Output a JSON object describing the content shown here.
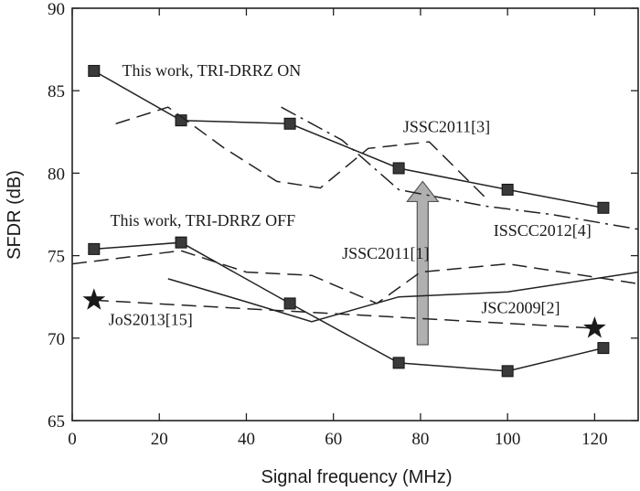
{
  "chart_data": {
    "type": "line",
    "xlabel": "Signal frequency (MHz)",
    "ylabel": "SFDR (dB)",
    "xlim": [
      0,
      130
    ],
    "ylim": [
      65,
      90
    ],
    "x_ticks": [
      0,
      20,
      40,
      60,
      80,
      100,
      120
    ],
    "y_ticks": [
      65,
      70,
      75,
      80,
      85,
      90
    ],
    "grid": false,
    "series": [
      {
        "name": "This work, TRI-DRRZ ON",
        "style": "solid",
        "marker": "square",
        "x": [
          5,
          25,
          50,
          75,
          100,
          122
        ],
        "y": [
          86.2,
          83.2,
          83.0,
          80.3,
          79.0,
          77.9
        ]
      },
      {
        "name": "This work, TRI-DRRZ OFF",
        "style": "solid",
        "marker": "square",
        "x": [
          5,
          25,
          50,
          75,
          100,
          122
        ],
        "y": [
          75.4,
          75.8,
          72.1,
          68.5,
          68.0,
          69.4
        ]
      },
      {
        "name": "JSSC2011[3]",
        "style": "dashed",
        "marker": "none",
        "x": [
          10,
          22,
          35,
          47,
          57,
          68,
          82,
          95
        ],
        "y": [
          83.0,
          84.0,
          81.5,
          79.5,
          79.1,
          81.5,
          81.9,
          78.5
        ]
      },
      {
        "name": "ISSCC2012[4]",
        "style": "dashdot",
        "marker": "none",
        "x": [
          48,
          62,
          75,
          95,
          110,
          130
        ],
        "y": [
          84.0,
          82.0,
          79.0,
          78.0,
          77.5,
          76.6
        ]
      },
      {
        "name": "JSSC2011[1]",
        "style": "dashed",
        "marker": "none",
        "x": [
          0,
          25,
          40,
          55,
          70,
          80,
          100,
          130
        ],
        "y": [
          74.5,
          75.3,
          74.0,
          73.8,
          72.1,
          74.0,
          74.5,
          73.3
        ]
      },
      {
        "name": "JSC2009[2]",
        "style": "solid",
        "marker": "none",
        "x": [
          22,
          40,
          55,
          75,
          100,
          130
        ],
        "y": [
          73.6,
          72.2,
          71.0,
          72.5,
          72.8,
          74.0
        ]
      },
      {
        "name": "JoS2013[15]",
        "style": "dashed",
        "marker": "star",
        "x": [
          5,
          120
        ],
        "y": [
          72.3,
          70.6
        ]
      }
    ],
    "annotations": [
      {
        "text": "This work, TRI-DRRZ ON",
        "x": 32,
        "y": 85.9
      },
      {
        "text": "This work, TRI-DRRZ OFF",
        "x": 30,
        "y": 76.8
      },
      {
        "text": "JSSC2011[3]",
        "x": 86,
        "y": 82.5
      },
      {
        "text": "ISSCC2012[4]",
        "x": 108,
        "y": 76.2
      },
      {
        "text": "JSSC2011[1]",
        "x": 72,
        "y": 74.8
      },
      {
        "text": "JSC2009[2]",
        "x": 103,
        "y": 71.5
      },
      {
        "text": "JoS2013[15]",
        "x": 18,
        "y": 70.8
      }
    ],
    "arrow": {
      "from": [
        80.5,
        69.6
      ],
      "to": [
        80.5,
        79.5
      ],
      "color": "#b0b0b0"
    }
  }
}
